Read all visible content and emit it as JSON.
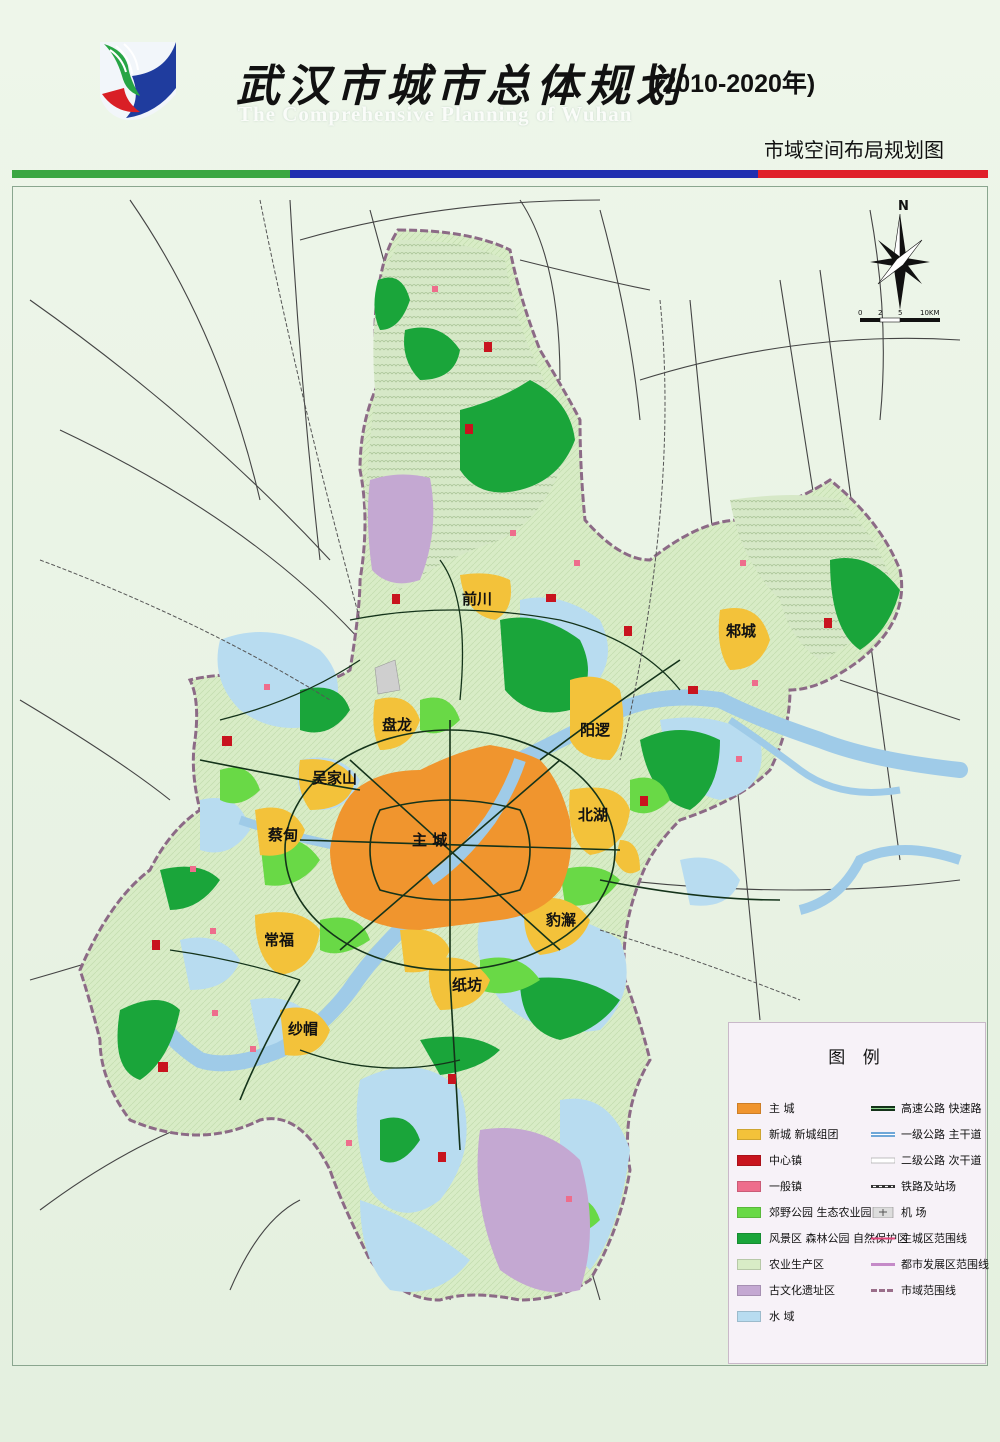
{
  "header": {
    "title_cn": "武汉市城市总体规划",
    "title_years": "(2010-2020年)",
    "title_en": "The Comprehensive Planning of Wuhan",
    "map_title": "市域空间布局规划图",
    "band_colors": [
      "#3aa642",
      "#1f2fb0",
      "#e0202a"
    ]
  },
  "compass": {
    "north_label": "N",
    "scale_ticks": [
      "0",
      "2",
      "5",
      "10KM"
    ]
  },
  "map": {
    "main_city_label": "主 城",
    "new_cities": [
      "前川",
      "阳逻",
      "盘龙",
      "吴家山",
      "蔡甸",
      "北湖",
      "常福",
      "豹澥",
      "纸坊",
      "纱帽",
      "邾城"
    ]
  },
  "legend": {
    "title": "图 例",
    "items": [
      {
        "label": "主 城",
        "kind": "fill",
        "color": "#f0952e"
      },
      {
        "label": "新城 新城组团",
        "kind": "fill",
        "color": "#f3c23a"
      },
      {
        "label": "中心镇",
        "kind": "fill",
        "color": "#c8141e"
      },
      {
        "label": "一般镇",
        "kind": "fill",
        "color": "#ee6d8c"
      },
      {
        "label": "郊野公园 生态农业园",
        "kind": "fill",
        "color": "#69d946"
      },
      {
        "label": "风景区 森林公园 自然保护区",
        "kind": "fill",
        "color": "#1aa53a"
      },
      {
        "label": "农业生产区",
        "kind": "fill",
        "color": "#d8ecc6"
      },
      {
        "label": "古文化遗址区",
        "kind": "fill",
        "color": "#c4a8d2"
      },
      {
        "label": "水 域",
        "kind": "fill",
        "color": "#b8dcf0"
      },
      {
        "label": "高速公路 快速路",
        "kind": "line",
        "color": "#14331a"
      },
      {
        "label": "一级公路 主干道",
        "kind": "line",
        "color": "#6fa7d8"
      },
      {
        "label": "二级公路 次干道",
        "kind": "line",
        "color": "#ffffff"
      },
      {
        "label": "铁路及站场",
        "kind": "line",
        "color": "#333333"
      },
      {
        "label": "机 场",
        "kind": "icon",
        "color": "#bbbbbb"
      },
      {
        "label": "主城区范围线",
        "kind": "line",
        "color": "#e0457a"
      },
      {
        "label": "都市发展区范围线",
        "kind": "line",
        "color": "#c58ac8"
      },
      {
        "label": "市域范围线",
        "kind": "line",
        "color": "#9a6e8a"
      }
    ]
  },
  "palette": {
    "farmland": "#d8ecc6",
    "water": "#b8dcf0",
    "forest": "#1aa53a",
    "park": "#69d946",
    "main_city": "#f0952e",
    "new_city": "#f3c23a",
    "heritage": "#c4a8d2",
    "river": "#9fcbe8",
    "hill": "#c6dbb5"
  }
}
